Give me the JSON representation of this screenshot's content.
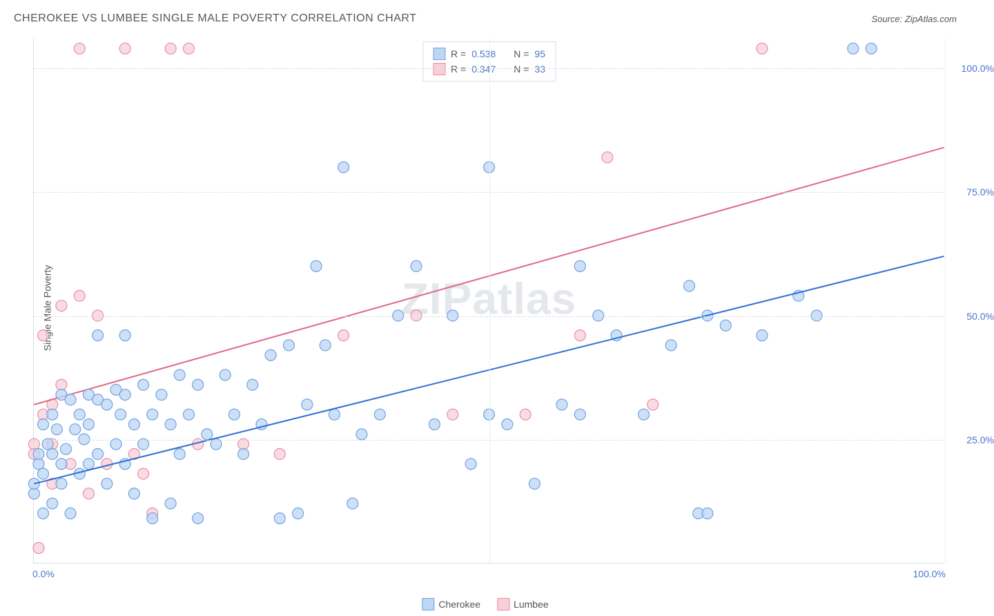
{
  "title": "CHEROKEE VS LUMBEE SINGLE MALE POVERTY CORRELATION CHART",
  "source_prefix": "Source: ",
  "source_name": "ZipAtlas.com",
  "ylabel": "Single Male Poverty",
  "watermark": "ZIPatlas",
  "chart": {
    "type": "scatter",
    "xlim": [
      0,
      100
    ],
    "ylim": [
      0,
      106
    ],
    "yticks": [
      25,
      50,
      75,
      100
    ],
    "ytick_labels": [
      "25.0%",
      "50.0%",
      "75.0%",
      "100.0%"
    ],
    "xticks": [
      50,
      100
    ],
    "xtick_labels_ends": [
      "0.0%",
      "100.0%"
    ],
    "grid_color": "#d9dde3",
    "background_color": "#ffffff",
    "marker_radius": 8,
    "marker_stroke_width": 1.2,
    "line_width": 2
  },
  "series": {
    "cherokee": {
      "label": "Cherokee",
      "R_label": "R = ",
      "R": "0.538",
      "N_label": "N = ",
      "N": "95",
      "fill": "#bcd6f5",
      "stroke": "#6fa3e0",
      "line_color": "#2e6fd6",
      "trend": {
        "x1": 0,
        "y1": 16,
        "x2": 100,
        "y2": 62
      },
      "points": [
        [
          0,
          14
        ],
        [
          0,
          16
        ],
        [
          0.5,
          20
        ],
        [
          0.5,
          22
        ],
        [
          1,
          18
        ],
        [
          1,
          28
        ],
        [
          1,
          10
        ],
        [
          1.5,
          24
        ],
        [
          2,
          12
        ],
        [
          2,
          30
        ],
        [
          2,
          22
        ],
        [
          2.5,
          27
        ],
        [
          3,
          16
        ],
        [
          3,
          20
        ],
        [
          3,
          34
        ],
        [
          3.5,
          23
        ],
        [
          4,
          10
        ],
        [
          4,
          33
        ],
        [
          4.5,
          27
        ],
        [
          5,
          30
        ],
        [
          5,
          18
        ],
        [
          5.5,
          25
        ],
        [
          6,
          34
        ],
        [
          6,
          20
        ],
        [
          6,
          28
        ],
        [
          7,
          22
        ],
        [
          7,
          33
        ],
        [
          7,
          46
        ],
        [
          8,
          32
        ],
        [
          8,
          16
        ],
        [
          9,
          24
        ],
        [
          9,
          35
        ],
        [
          9.5,
          30
        ],
        [
          10,
          20
        ],
        [
          10,
          34
        ],
        [
          10,
          46
        ],
        [
          11,
          28
        ],
        [
          11,
          14
        ],
        [
          12,
          36
        ],
        [
          12,
          24
        ],
        [
          13,
          30
        ],
        [
          13,
          9
        ],
        [
          14,
          34
        ],
        [
          15,
          28
        ],
        [
          15,
          12
        ],
        [
          16,
          22
        ],
        [
          16,
          38
        ],
        [
          17,
          30
        ],
        [
          18,
          9
        ],
        [
          18,
          36
        ],
        [
          19,
          26
        ],
        [
          20,
          24
        ],
        [
          21,
          38
        ],
        [
          22,
          30
        ],
        [
          23,
          22
        ],
        [
          24,
          36
        ],
        [
          25,
          28
        ],
        [
          26,
          42
        ],
        [
          27,
          9
        ],
        [
          28,
          44
        ],
        [
          29,
          10
        ],
        [
          30,
          32
        ],
        [
          31,
          60
        ],
        [
          32,
          44
        ],
        [
          33,
          30
        ],
        [
          34,
          80
        ],
        [
          35,
          12
        ],
        [
          36,
          26
        ],
        [
          38,
          30
        ],
        [
          40,
          50
        ],
        [
          42,
          60
        ],
        [
          44,
          28
        ],
        [
          46,
          50
        ],
        [
          48,
          20
        ],
        [
          50,
          30
        ],
        [
          50,
          80
        ],
        [
          52,
          28
        ],
        [
          55,
          16
        ],
        [
          58,
          32
        ],
        [
          60,
          30
        ],
        [
          60,
          60
        ],
        [
          62,
          50
        ],
        [
          64,
          46
        ],
        [
          67,
          30
        ],
        [
          70,
          44
        ],
        [
          72,
          56
        ],
        [
          74,
          50
        ],
        [
          76,
          48
        ],
        [
          73,
          10
        ],
        [
          74,
          10
        ],
        [
          80,
          46
        ],
        [
          90,
          104
        ],
        [
          92,
          104
        ],
        [
          86,
          50
        ],
        [
          84,
          54
        ]
      ]
    },
    "lumbee": {
      "label": "Lumbee",
      "R_label": "R = ",
      "R": "0.347",
      "N_label": "N = ",
      "N": "33",
      "fill": "#f7cfd9",
      "stroke": "#e98fa5",
      "line_color": "#e06a88",
      "trend": {
        "x1": 0,
        "y1": 32,
        "x2": 100,
        "y2": 84
      },
      "points": [
        [
          0,
          24
        ],
        [
          0,
          22
        ],
        [
          0.5,
          3
        ],
        [
          1,
          30
        ],
        [
          1,
          46
        ],
        [
          2,
          24
        ],
        [
          2,
          16
        ],
        [
          2,
          32
        ],
        [
          3,
          52
        ],
        [
          3,
          36
        ],
        [
          4,
          20
        ],
        [
          5,
          54
        ],
        [
          5,
          104
        ],
        [
          6,
          14
        ],
        [
          7,
          50
        ],
        [
          8,
          20
        ],
        [
          10,
          104
        ],
        [
          11,
          22
        ],
        [
          12,
          18
        ],
        [
          13,
          10
        ],
        [
          15,
          104
        ],
        [
          17,
          104
        ],
        [
          18,
          24
        ],
        [
          23,
          24
        ],
        [
          27,
          22
        ],
        [
          34,
          46
        ],
        [
          42,
          50
        ],
        [
          46,
          30
        ],
        [
          54,
          30
        ],
        [
          60,
          46
        ],
        [
          63,
          82
        ],
        [
          68,
          32
        ],
        [
          80,
          104
        ]
      ]
    }
  },
  "legend": {
    "cherokee_swatch_fill": "#bcd6f5",
    "cherokee_swatch_stroke": "#6fa3e0",
    "lumbee_swatch_fill": "#f7cfd9",
    "lumbee_swatch_stroke": "#e98fa5"
  }
}
